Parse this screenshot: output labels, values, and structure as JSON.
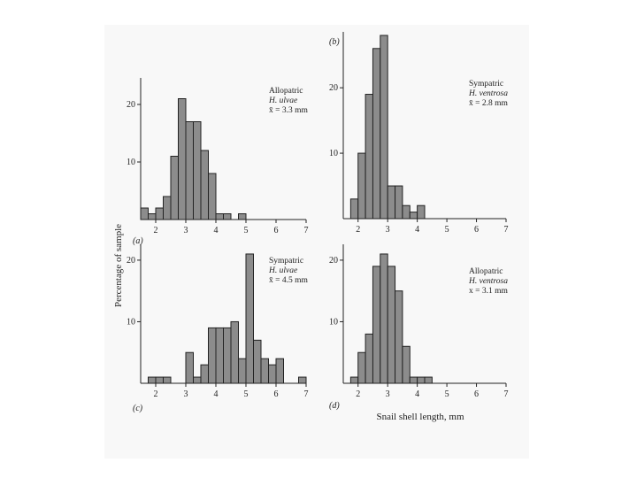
{
  "figure": {
    "y_axis_title": "Percentage of sample",
    "x_axis_title": "Snail shell length, mm"
  },
  "chart_data": [
    {
      "type": "bar",
      "panel": "(a)",
      "annotation": [
        "Allopatric",
        "H. ulvae",
        "x̄ = 3.3 mm"
      ],
      "bin_width": 0.25,
      "bin_starts": [
        1.5,
        1.75,
        2.0,
        2.25,
        2.5,
        2.75,
        3.0,
        3.25,
        3.5,
        3.75,
        4.0,
        4.25,
        4.5,
        4.75,
        5.0
      ],
      "values": [
        2,
        1,
        2,
        4,
        11,
        21,
        17,
        17,
        12,
        8,
        1,
        1,
        0,
        1,
        0
      ],
      "xlim": [
        1.5,
        7.0
      ],
      "ylim": [
        0,
        24
      ],
      "xticks": [
        2,
        3,
        4,
        5,
        6,
        7
      ],
      "yticks": [
        10,
        20
      ]
    },
    {
      "type": "bar",
      "panel": "(b)",
      "panel_letter_position": "top",
      "annotation": [
        "Sympatric",
        "H. ventrosa",
        "x̄ = 2.8 mm"
      ],
      "bin_width": 0.25,
      "bin_starts": [
        1.75,
        2.0,
        2.25,
        2.5,
        2.75,
        3.0,
        3.25,
        3.5,
        3.75,
        4.0
      ],
      "values": [
        3,
        10,
        19,
        26,
        28,
        5,
        5,
        2,
        1,
        2
      ],
      "xlim": [
        1.5,
        7.0
      ],
      "ylim": [
        0,
        28
      ],
      "xticks": [
        2,
        3,
        4,
        5,
        6,
        7
      ],
      "yticks": [
        10,
        20
      ]
    },
    {
      "type": "bar",
      "panel": "(c)",
      "annotation": [
        "Sympatric",
        "H. ulvae",
        "x̄ = 4.5 mm"
      ],
      "bin_width": 0.25,
      "bin_starts": [
        1.75,
        2.0,
        2.25,
        2.5,
        2.75,
        3.0,
        3.25,
        3.5,
        3.75,
        4.0,
        4.25,
        4.5,
        4.75,
        5.0,
        5.25,
        5.5,
        5.75,
        6.0,
        6.25,
        6.5,
        6.75
      ],
      "values": [
        1,
        1,
        1,
        0,
        0,
        5,
        1,
        3,
        9,
        9,
        9,
        10,
        4,
        21,
        7,
        4,
        3,
        4,
        0,
        0,
        1
      ],
      "xlim": [
        1.5,
        7.0
      ],
      "ylim": [
        0,
        22
      ],
      "xticks": [
        2,
        3,
        4,
        5,
        6,
        7
      ],
      "yticks": [
        10,
        20
      ]
    },
    {
      "type": "bar",
      "panel": "(d)",
      "annotation": [
        "Allopatric",
        "H. ventrosa",
        "x = 3.1 mm"
      ],
      "bin_width": 0.25,
      "bin_starts": [
        1.75,
        2.0,
        2.25,
        2.5,
        2.75,
        3.0,
        3.25,
        3.5,
        3.75,
        4.0,
        4.25
      ],
      "values": [
        1,
        5,
        8,
        19,
        21,
        19,
        15,
        6,
        1,
        1,
        1
      ],
      "xlim": [
        1.5,
        7.0
      ],
      "ylim": [
        0,
        22
      ],
      "xticks": [
        2,
        3,
        4,
        5,
        6,
        7
      ],
      "yticks": [
        10,
        20
      ]
    }
  ]
}
